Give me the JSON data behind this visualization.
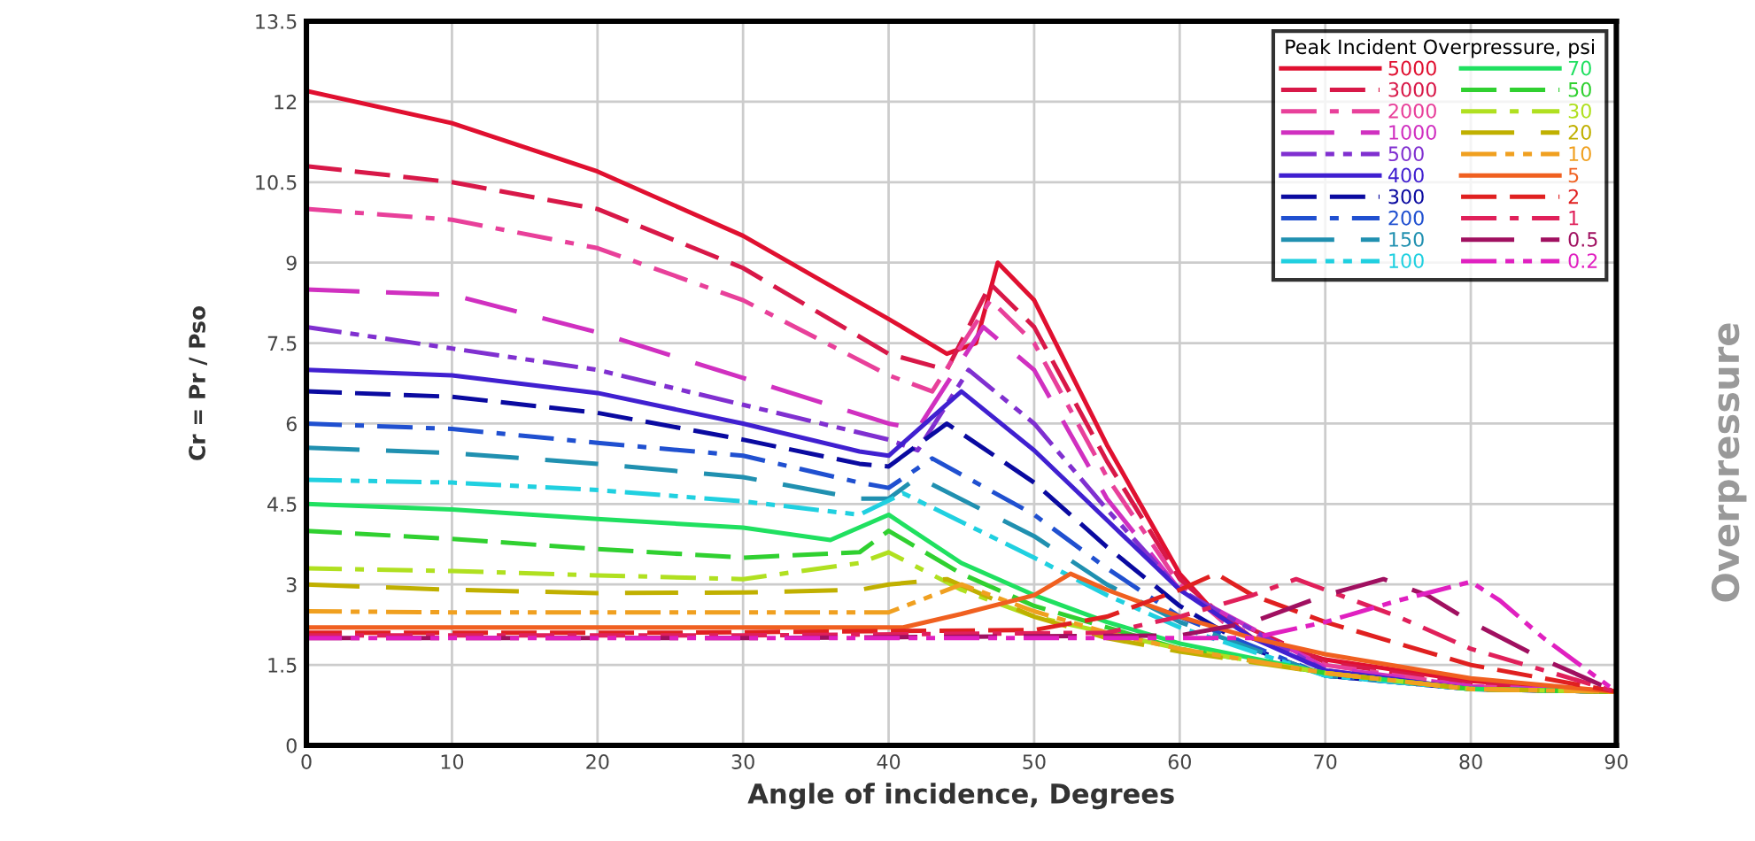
{
  "chart_data": {
    "type": "line",
    "xlabel": "Angle of incidence, Degrees",
    "ylabel": "Cr = Pr / Pso",
    "legend_title": "Peak Incident Overpressure, psi",
    "legend": "top right",
    "grid": true,
    "xlim": [
      0,
      90
    ],
    "xticks": [
      0,
      10,
      20,
      30,
      40,
      50,
      60,
      70,
      80,
      90
    ],
    "ylim": [
      0,
      13.5
    ],
    "yticks": [
      0,
      1.5,
      3,
      4.5,
      6,
      7.5,
      9,
      10.5,
      12,
      13.5
    ],
    "annotations": [
      "Overpressure"
    ],
    "series": [
      {
        "name": "5000",
        "color": "#e01030",
        "line_style": "solid",
        "x": [
          0,
          10,
          20,
          30,
          40,
          44,
          46,
          47.5,
          50,
          55,
          60,
          62,
          65,
          70,
          80,
          90
        ],
        "values": [
          12.2,
          11.6,
          10.7,
          9.5,
          7.95,
          7.3,
          7.5,
          9.0,
          8.3,
          5.6,
          3.2,
          2.6,
          2.0,
          1.6,
          1.2,
          1.0
        ]
      },
      {
        "name": "3000",
        "color": "#d81848",
        "line_style": "dashed",
        "x": [
          0,
          10,
          20,
          30,
          40,
          44,
          47,
          50,
          55,
          60,
          63,
          70,
          80,
          90
        ],
        "values": [
          10.8,
          10.5,
          10.0,
          8.9,
          7.3,
          7.0,
          8.6,
          7.8,
          5.3,
          3.1,
          2.4,
          1.55,
          1.15,
          1.0
        ]
      },
      {
        "name": "2000",
        "color": "#e8409a",
        "line_style": "dashdot",
        "x": [
          0,
          10,
          20,
          30,
          40,
          43,
          47,
          50,
          55,
          60,
          63,
          70,
          80,
          90
        ],
        "values": [
          10.0,
          9.8,
          9.27,
          8.3,
          6.9,
          6.6,
          8.3,
          7.5,
          5.0,
          3.0,
          2.3,
          1.5,
          1.1,
          1.0
        ]
      },
      {
        "name": "1000",
        "color": "#d030c0",
        "line_style": "longdash",
        "x": [
          0,
          10,
          20,
          30,
          40,
          42,
          46.5,
          50,
          55,
          60,
          70,
          80,
          90
        ],
        "values": [
          8.5,
          8.4,
          7.7,
          6.85,
          6.0,
          5.9,
          7.8,
          7.0,
          4.6,
          2.9,
          1.45,
          1.1,
          1.0
        ]
      },
      {
        "name": "500",
        "color": "#8030d0",
        "line_style": "dashdotdot",
        "x": [
          0,
          10,
          20,
          30,
          40,
          42,
          45.5,
          50,
          55,
          60,
          70,
          80,
          90
        ],
        "values": [
          7.8,
          7.4,
          7.0,
          6.35,
          5.7,
          5.5,
          7.0,
          6.0,
          4.4,
          2.9,
          1.4,
          1.05,
          1.0
        ]
      },
      {
        "name": "400",
        "color": "#4020d0",
        "line_style": "solid",
        "x": [
          0,
          10,
          20,
          30,
          38,
          40,
          45,
          50,
          55,
          60,
          65,
          70,
          80,
          90
        ],
        "values": [
          7.0,
          6.9,
          6.57,
          6.0,
          5.48,
          5.4,
          6.6,
          5.5,
          4.2,
          2.9,
          2.0,
          1.4,
          1.05,
          1.0
        ]
      },
      {
        "name": "300",
        "color": "#0a0aa0",
        "line_style": "dashed",
        "x": [
          0,
          10,
          20,
          30,
          38,
          40,
          44,
          50,
          55,
          60,
          65,
          70,
          80,
          90
        ],
        "values": [
          6.6,
          6.5,
          6.2,
          5.7,
          5.25,
          5.2,
          6.0,
          4.9,
          3.7,
          2.6,
          1.8,
          1.3,
          1.05,
          1.0
        ]
      },
      {
        "name": "200",
        "color": "#2050d0",
        "line_style": "dashdot",
        "x": [
          0,
          10,
          20,
          30,
          38,
          40,
          43,
          50,
          55,
          60,
          70,
          80,
          90
        ],
        "values": [
          6.0,
          5.9,
          5.64,
          5.4,
          4.9,
          4.8,
          5.35,
          4.3,
          3.3,
          2.4,
          1.3,
          1.05,
          1.0
        ]
      },
      {
        "name": "150",
        "color": "#2090b0",
        "line_style": "longdash",
        "x": [
          0,
          10,
          20,
          30,
          38,
          40,
          42,
          50,
          55,
          60,
          70,
          80,
          90
        ],
        "values": [
          5.55,
          5.45,
          5.25,
          5.0,
          4.6,
          4.6,
          5.0,
          3.9,
          3.0,
          2.3,
          1.3,
          1.05,
          1.0
        ]
      },
      {
        "name": "100",
        "color": "#20d0e0",
        "line_style": "dashdotdot",
        "x": [
          0,
          10,
          20,
          30,
          38,
          41,
          50,
          55,
          60,
          70,
          80,
          90
        ],
        "values": [
          4.95,
          4.9,
          4.76,
          4.55,
          4.3,
          4.7,
          3.5,
          2.8,
          2.2,
          1.3,
          1.05,
          1.0
        ]
      },
      {
        "name": "70",
        "color": "#20e060",
        "line_style": "solid",
        "x": [
          0,
          10,
          20,
          30,
          36,
          40,
          45,
          50,
          55,
          60,
          70,
          80,
          90
        ],
        "values": [
          4.5,
          4.4,
          4.22,
          4.06,
          3.83,
          4.3,
          3.4,
          2.8,
          2.3,
          1.9,
          1.35,
          1.05,
          1.0
        ]
      },
      {
        "name": "50",
        "color": "#30d030",
        "line_style": "dashed",
        "x": [
          0,
          10,
          20,
          30,
          38,
          40,
          45,
          50,
          55,
          60,
          70,
          80,
          90
        ],
        "values": [
          4.0,
          3.85,
          3.66,
          3.5,
          3.6,
          4.0,
          3.2,
          2.6,
          2.2,
          1.8,
          1.35,
          1.05,
          1.0
        ]
      },
      {
        "name": "30",
        "color": "#b0e020",
        "line_style": "dashdot",
        "x": [
          0,
          10,
          20,
          30,
          38,
          40,
          45,
          50,
          55,
          60,
          70,
          80,
          90
        ],
        "values": [
          3.3,
          3.25,
          3.17,
          3.1,
          3.4,
          3.6,
          2.9,
          2.4,
          2.1,
          1.8,
          1.35,
          1.05,
          1.0
        ]
      },
      {
        "name": "20",
        "color": "#c0b000",
        "line_style": "longdash",
        "x": [
          0,
          10,
          20,
          30,
          38,
          40,
          44,
          50,
          55,
          60,
          70,
          80,
          90
        ],
        "values": [
          3.0,
          2.9,
          2.84,
          2.85,
          2.9,
          3.0,
          3.1,
          2.4,
          2.0,
          1.75,
          1.35,
          1.05,
          1.0
        ]
      },
      {
        "name": "10",
        "color": "#f0a020",
        "line_style": "dashdotdot",
        "x": [
          0,
          10,
          20,
          30,
          40,
          45,
          50,
          55,
          60,
          70,
          80,
          90
        ],
        "values": [
          2.5,
          2.48,
          2.48,
          2.48,
          2.48,
          3.0,
          2.5,
          2.1,
          1.8,
          1.35,
          1.05,
          1.0
        ]
      },
      {
        "name": "5",
        "color": "#f06020",
        "line_style": "solid",
        "x": [
          0,
          20,
          41,
          45,
          50,
          52.5,
          55,
          60,
          65,
          70,
          80,
          90
        ],
        "values": [
          2.2,
          2.2,
          2.2,
          2.45,
          2.8,
          3.2,
          2.9,
          2.4,
          2.0,
          1.7,
          1.25,
          1.0
        ]
      },
      {
        "name": "2",
        "color": "#e02020",
        "line_style": "dashed",
        "x": [
          0,
          25,
          50,
          55,
          60,
          62.5,
          65,
          70,
          80,
          90
        ],
        "values": [
          2.1,
          2.1,
          2.15,
          2.4,
          2.9,
          3.2,
          2.8,
          2.3,
          1.5,
          1.0
        ]
      },
      {
        "name": "1",
        "color": "#e0205a",
        "line_style": "dashdot",
        "x": [
          0,
          30,
          55,
          60,
          65,
          68,
          70,
          75,
          80,
          85,
          90
        ],
        "values": [
          2.05,
          2.05,
          2.1,
          2.4,
          2.8,
          3.1,
          2.9,
          2.4,
          1.8,
          1.4,
          1.0
        ]
      },
      {
        "name": "0.5",
        "color": "#a01060",
        "line_style": "longdash",
        "x": [
          0,
          30,
          60,
          65,
          70,
          74,
          77,
          80,
          85,
          90
        ],
        "values": [
          2.0,
          2.0,
          2.05,
          2.3,
          2.8,
          3.1,
          2.8,
          2.3,
          1.6,
          1.0
        ]
      },
      {
        "name": "0.2",
        "color": "#e020c0",
        "line_style": "dashdotdot",
        "x": [
          0,
          30,
          65,
          70,
          75,
          80,
          82,
          85,
          90
        ],
        "values": [
          2.0,
          2.0,
          2.0,
          2.3,
          2.7,
          3.05,
          2.7,
          2.0,
          1.0
        ]
      }
    ]
  }
}
